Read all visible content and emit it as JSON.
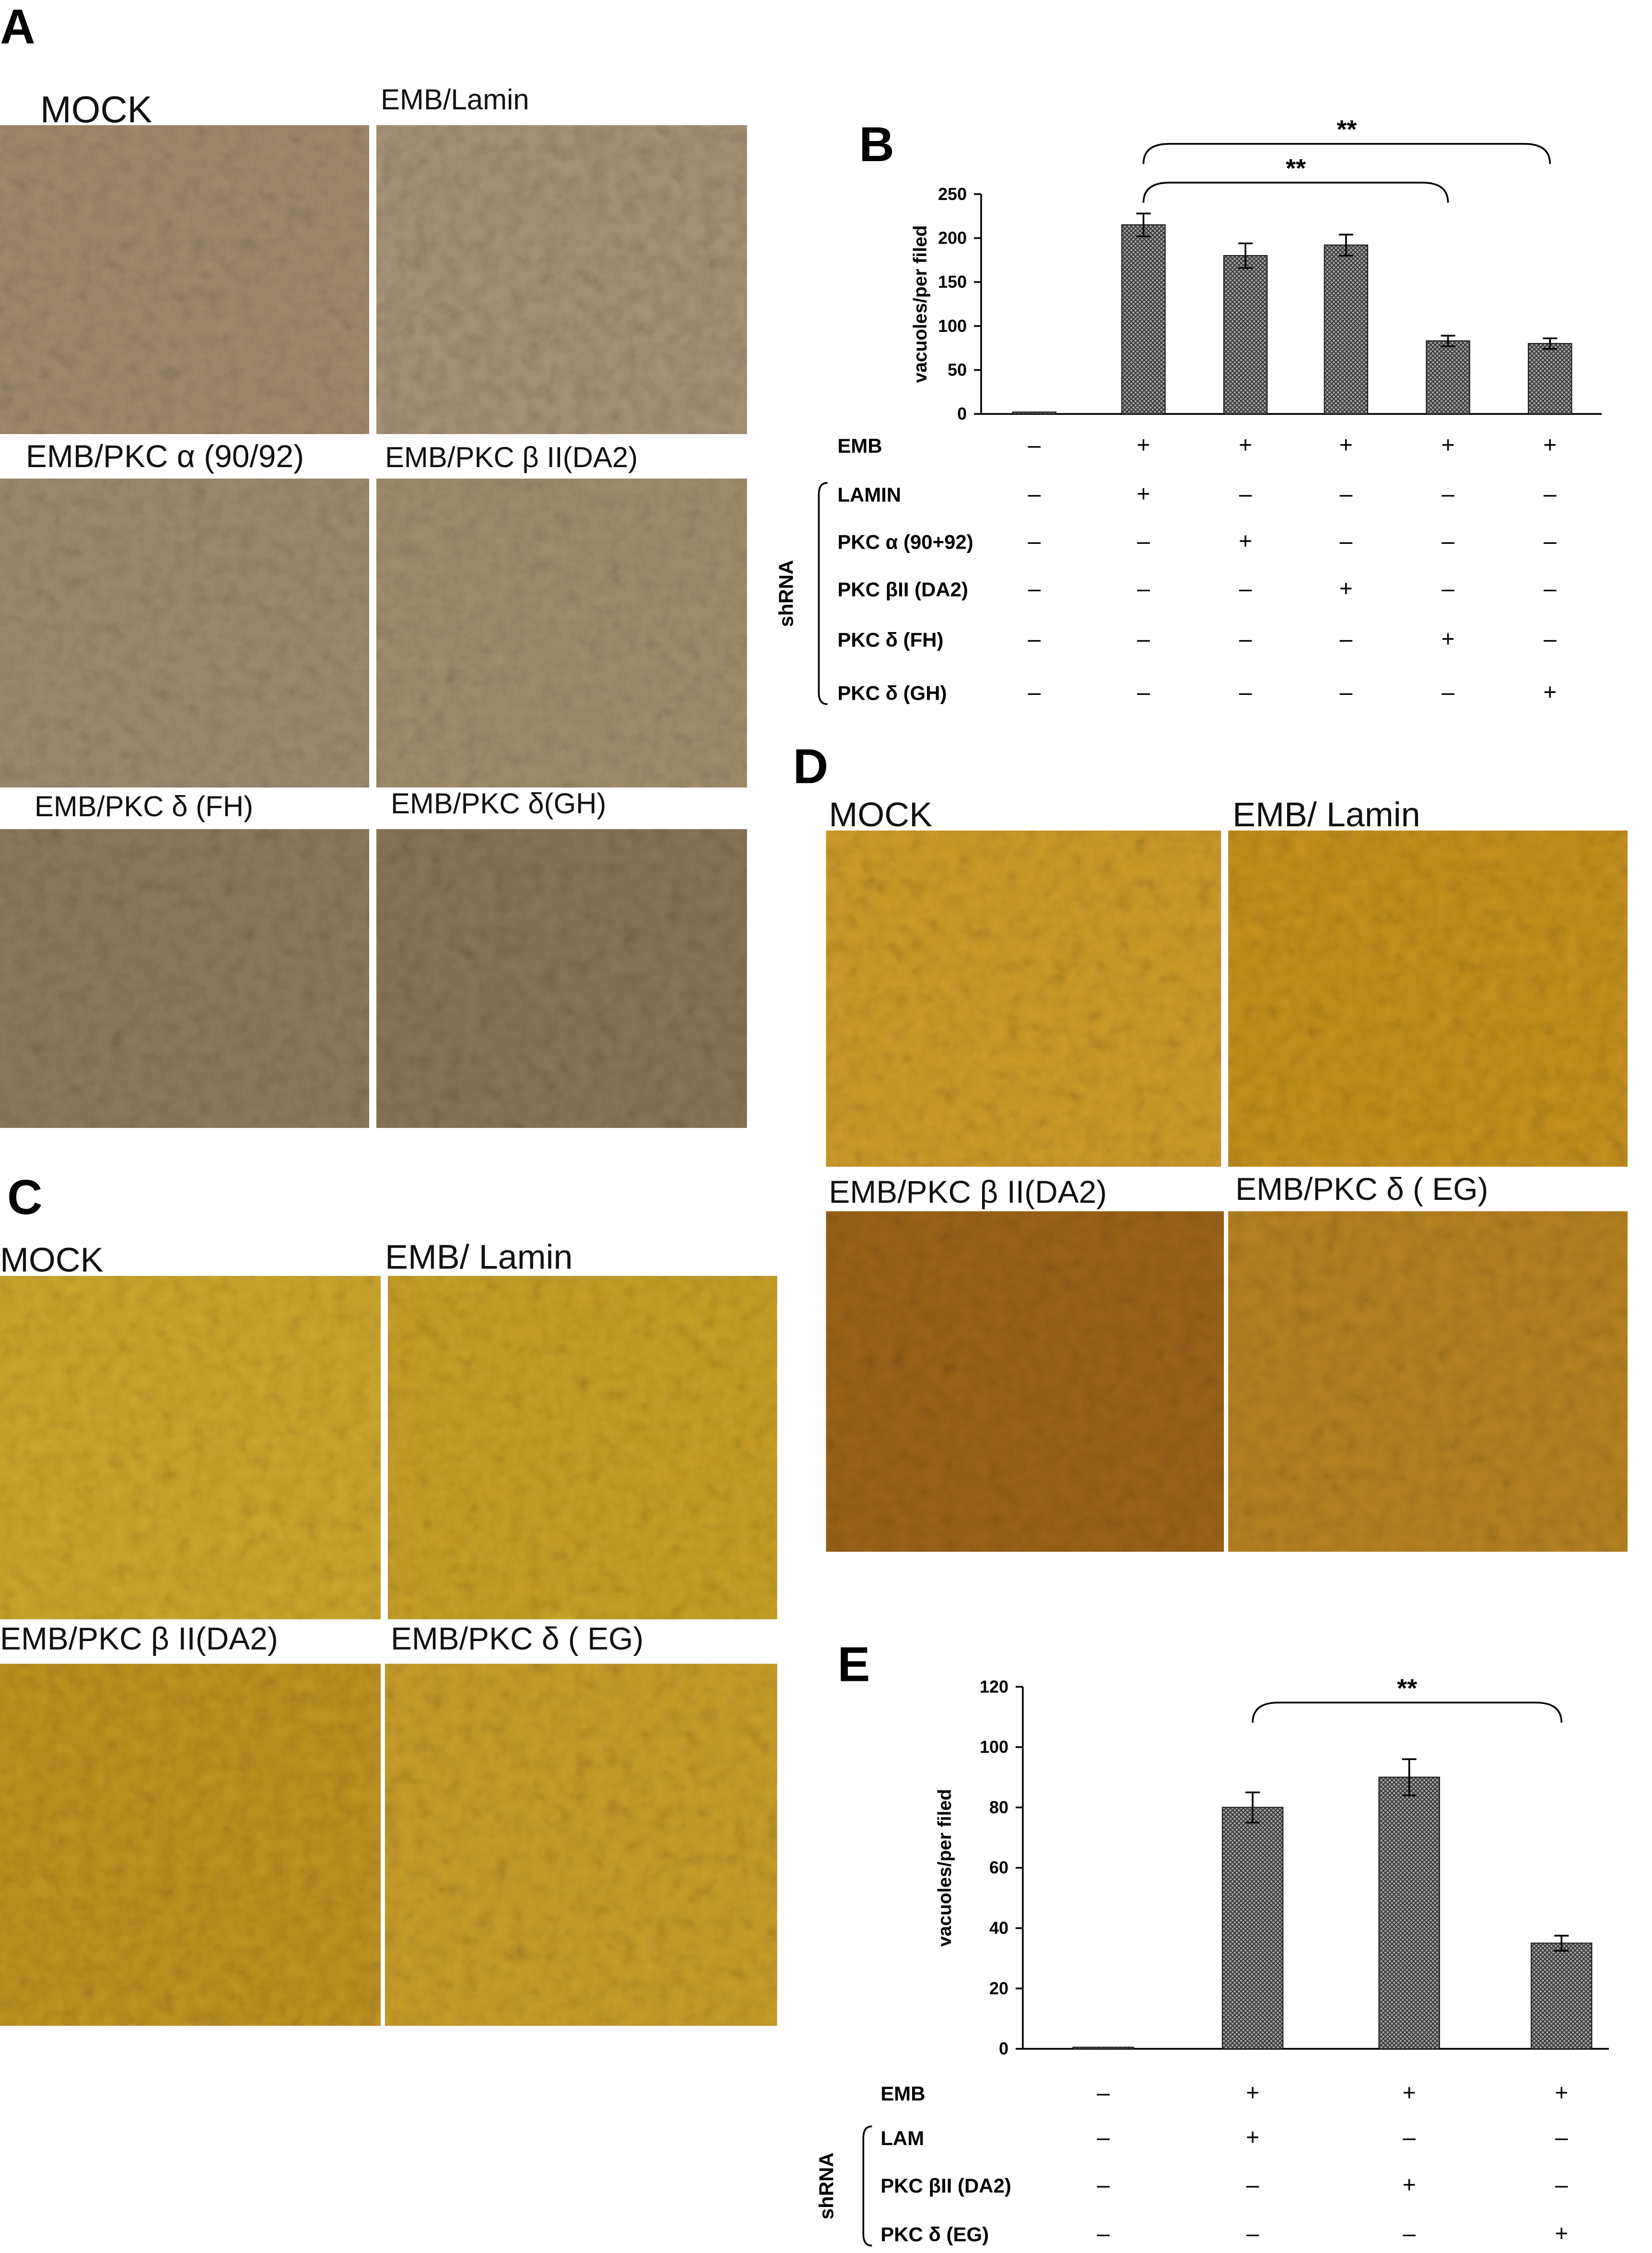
{
  "figure": {
    "panels": [
      {
        "label": "A",
        "images": [
          "MOCK",
          "EMB/Lamin",
          "EMB/PKC α (90/92)",
          "EMB/PKC β II(DA2)",
          "EMB/PKC δ (FH)",
          "EMB/PKC δ(GH)"
        ]
      },
      {
        "label": "C",
        "images": [
          "MOCK",
          "EMB/ Lamin",
          "EMB/PKC β II(DA2)",
          "EMB/PKC δ ( EG)"
        ]
      },
      {
        "label": "D",
        "images": [
          "MOCK",
          "EMB/ Lamin",
          "EMB/PKC β II(DA2)",
          "EMB/PKC δ ( EG)"
        ]
      }
    ]
  },
  "chart_data": [
    {
      "type": "bar",
      "panel_label": "B",
      "y_label": "vacuoles/per filed",
      "categories": [
        null,
        null,
        null,
        null,
        null,
        null
      ],
      "values": [
        2,
        215,
        180,
        192,
        83,
        80
      ],
      "errors": [
        0,
        13,
        14,
        12,
        6,
        6
      ],
      "color": "#8a8a8a",
      "ylim": [
        0,
        250
      ],
      "yticks": [
        0,
        50,
        100,
        150,
        200,
        250
      ],
      "annotations": [
        {
          "text": "**",
          "between": [
            1,
            5
          ]
        },
        {
          "text": "**",
          "between": [
            1,
            4
          ]
        }
      ],
      "table": {
        "group_label": "shRNA",
        "rows": [
          {
            "label": "EMB",
            "cells": [
              "–",
              "+",
              "+",
              "+",
              "+",
              "+"
            ]
          },
          {
            "label": "LAMIN",
            "cells": [
              "–",
              "+",
              "–",
              "–",
              "–",
              "–"
            ]
          },
          {
            "label": "PKC α (90+92)",
            "cells": [
              "–",
              "–",
              "+",
              "–",
              "–",
              "–"
            ]
          },
          {
            "label": "PKC βII (DA2)",
            "cells": [
              "–",
              "–",
              "–",
              "+",
              "–",
              "–"
            ]
          },
          {
            "label": "PKC δ (FH)",
            "cells": [
              "–",
              "–",
              "–",
              "–",
              "+",
              "–"
            ]
          },
          {
            "label": "PKC δ (GH)",
            "cells": [
              "–",
              "–",
              "–",
              "–",
              "–",
              "+"
            ]
          }
        ]
      }
    },
    {
      "type": "bar",
      "panel_label": "E",
      "y_label": "vacuoles/per filed",
      "categories": [
        null,
        null,
        null,
        null
      ],
      "values": [
        0.5,
        80,
        90,
        35
      ],
      "errors": [
        0,
        5,
        6,
        2.5
      ],
      "color": "#8a8a8a",
      "ylim": [
        0,
        120
      ],
      "yticks": [
        0,
        20,
        40,
        60,
        80,
        100,
        120
      ],
      "annotations": [
        {
          "text": "**",
          "between": [
            1,
            3
          ]
        }
      ],
      "table": {
        "group_label": "shRNA",
        "rows": [
          {
            "label": "EMB",
            "cells": [
              "–",
              "+",
              "+",
              "+"
            ]
          },
          {
            "label": "LAM",
            "cells": [
              "–",
              "+",
              "–",
              "–"
            ]
          },
          {
            "label": "PKC βII (DA2)",
            "cells": [
              "–",
              "–",
              "+",
              "–"
            ]
          },
          {
            "label": "PKC δ (EG)",
            "cells": [
              "–",
              "–",
              "–",
              "+"
            ]
          }
        ]
      }
    }
  ]
}
